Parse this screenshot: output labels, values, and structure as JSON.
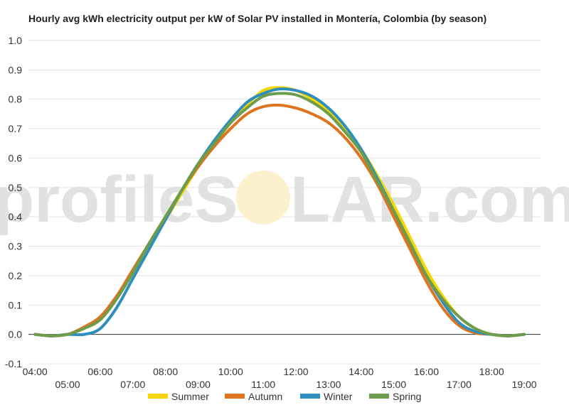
{
  "watermark": {
    "left": "profileS",
    "right": "LAR.com"
  },
  "chart_data": {
    "type": "line",
    "title": "Hourly avg kWh electricity output per kW of Solar PV installed in Montería, Colombia (by season)",
    "xlabel": "",
    "ylabel": "",
    "ylim": [
      -0.1,
      1.0
    ],
    "yticks": [
      "1.0",
      "0.9",
      "0.8",
      "0.7",
      "0.6",
      "0.5",
      "0.4",
      "0.3",
      "0.2",
      "0.1",
      "0.0",
      "-0.1"
    ],
    "xlim": [
      3.8,
      19.5
    ],
    "xticks_top": [
      "04:00",
      "06:00",
      "08:00",
      "10:00",
      "12:00",
      "14:00",
      "16:00",
      "18:00"
    ],
    "xticks_bottom": [
      "05:00",
      "07:00",
      "09:00",
      "11:00",
      "13:00",
      "15:00",
      "17:00",
      "19:00"
    ],
    "grid": true,
    "legend_position": "bottom",
    "colors": {
      "Summer": "#f7d500",
      "Autumn": "#e0731e",
      "Winter": "#2e8fbf",
      "Spring": "#6e9c4d"
    },
    "series": [
      {
        "name": "Summer",
        "x": [
          4.0,
          4.5,
          5.0,
          5.5,
          6.0,
          6.5,
          7.0,
          7.5,
          8.0,
          8.5,
          9.0,
          9.5,
          10.0,
          10.5,
          11.0,
          11.5,
          12.0,
          12.5,
          13.0,
          13.5,
          14.0,
          14.5,
          15.0,
          15.5,
          16.0,
          16.5,
          17.0,
          17.5,
          18.0,
          18.5,
          19.0
        ],
        "values": [
          0.0,
          -0.005,
          0.0,
          0.02,
          0.05,
          0.12,
          0.21,
          0.3,
          0.39,
          0.48,
          0.57,
          0.65,
          0.72,
          0.78,
          0.83,
          0.84,
          0.83,
          0.8,
          0.76,
          0.7,
          0.63,
          0.54,
          0.44,
          0.33,
          0.22,
          0.13,
          0.06,
          0.02,
          0.0,
          -0.005,
          0.0
        ]
      },
      {
        "name": "Autumn",
        "x": [
          4.0,
          4.5,
          5.0,
          5.5,
          6.0,
          6.5,
          7.0,
          7.5,
          8.0,
          8.5,
          9.0,
          9.5,
          10.0,
          10.5,
          11.0,
          11.5,
          12.0,
          12.5,
          13.0,
          13.5,
          14.0,
          14.5,
          15.0,
          15.5,
          16.0,
          16.5,
          17.0,
          17.5,
          18.0,
          18.5,
          19.0
        ],
        "values": [
          0.0,
          -0.005,
          0.0,
          0.025,
          0.06,
          0.13,
          0.22,
          0.31,
          0.4,
          0.49,
          0.57,
          0.64,
          0.7,
          0.75,
          0.775,
          0.78,
          0.77,
          0.75,
          0.72,
          0.67,
          0.6,
          0.51,
          0.4,
          0.29,
          0.18,
          0.09,
          0.03,
          0.005,
          0.0,
          -0.005,
          0.0
        ]
      },
      {
        "name": "Winter",
        "x": [
          4.0,
          4.5,
          5.0,
          5.5,
          6.0,
          6.5,
          7.0,
          7.5,
          8.0,
          8.5,
          9.0,
          9.5,
          10.0,
          10.5,
          11.0,
          11.5,
          12.0,
          12.5,
          13.0,
          13.5,
          14.0,
          14.5,
          15.0,
          15.5,
          16.0,
          16.5,
          17.0,
          17.5,
          18.0,
          18.5,
          19.0
        ],
        "values": [
          0.0,
          -0.005,
          0.0,
          0.0,
          0.02,
          0.09,
          0.19,
          0.29,
          0.39,
          0.49,
          0.58,
          0.66,
          0.73,
          0.79,
          0.82,
          0.835,
          0.83,
          0.81,
          0.77,
          0.71,
          0.63,
          0.53,
          0.42,
          0.31,
          0.2,
          0.11,
          0.04,
          0.01,
          0.0,
          -0.005,
          0.0
        ]
      },
      {
        "name": "Spring",
        "x": [
          4.0,
          4.5,
          5.0,
          5.5,
          6.0,
          6.5,
          7.0,
          7.5,
          8.0,
          8.5,
          9.0,
          9.5,
          10.0,
          10.5,
          11.0,
          11.5,
          12.0,
          12.5,
          13.0,
          13.5,
          14.0,
          14.5,
          15.0,
          15.5,
          16.0,
          16.5,
          17.0,
          17.5,
          18.0,
          18.5,
          19.0
        ],
        "values": [
          0.0,
          -0.005,
          0.0,
          0.02,
          0.05,
          0.12,
          0.21,
          0.31,
          0.4,
          0.49,
          0.58,
          0.65,
          0.72,
          0.77,
          0.81,
          0.82,
          0.815,
          0.79,
          0.75,
          0.69,
          0.62,
          0.52,
          0.42,
          0.31,
          0.2,
          0.12,
          0.06,
          0.02,
          0.0,
          -0.005,
          0.0
        ]
      }
    ]
  }
}
